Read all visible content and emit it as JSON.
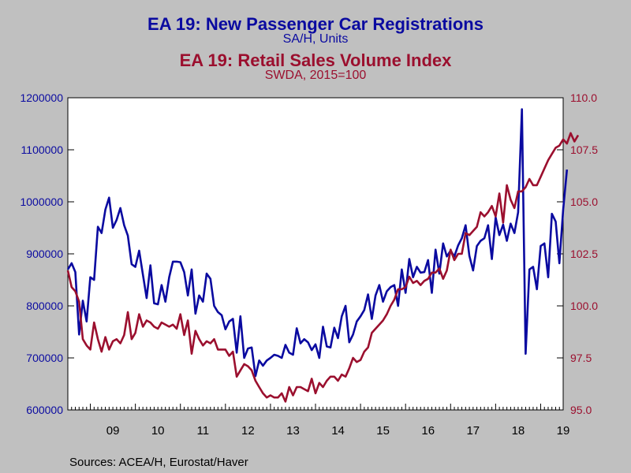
{
  "titles": {
    "title1": "EA 19: New Passenger Car Registrations",
    "subtitle1": "SA/H, Units",
    "title2": "EA 19: Retail Sales Volume Index",
    "subtitle2": "SWDA, 2015=100"
  },
  "source": "Sources:  ACEA/H, Eurostat/Haver",
  "colors": {
    "blue": "#0a0aa0",
    "red": "#9b0f2e",
    "plot_bg": "#ffffff",
    "page_bg": "#c0c0c0"
  },
  "chart_data": {
    "type": "line",
    "x_range": [
      2008.5,
      2019.5
    ],
    "x_tick_labels": [
      "09",
      "10",
      "11",
      "12",
      "13",
      "14",
      "15",
      "16",
      "17",
      "18",
      "19"
    ],
    "left_axis": {
      "ylim": [
        600000,
        1200000
      ],
      "ticks": [
        "600000",
        "700000",
        "800000",
        "900000",
        "1000000",
        "1100000",
        "1200000"
      ]
    },
    "right_axis": {
      "ylim": [
        95.0,
        110.0
      ],
      "ticks": [
        "95.0",
        "97.5",
        "100.0",
        "102.5",
        "105.0",
        "107.5",
        "110.0"
      ]
    },
    "grid": false,
    "series": [
      {
        "name": "EA 19: New Passenger Car Registrations",
        "axis": "left",
        "color": "#0a0aa0",
        "start": 2008.5,
        "step": 0.0833333,
        "values": [
          870000,
          882000,
          865000,
          745000,
          810000,
          770000,
          855000,
          850000,
          952000,
          940000,
          985000,
          1008000,
          950000,
          965000,
          988000,
          955000,
          935000,
          880000,
          875000,
          906000,
          860000,
          815000,
          878000,
          805000,
          803000,
          840000,
          808000,
          855000,
          885000,
          885000,
          884000,
          865000,
          820000,
          870000,
          785000,
          820000,
          808000,
          862000,
          852000,
          800000,
          788000,
          782000,
          755000,
          770000,
          775000,
          710000,
          780000,
          700000,
          718000,
          720000,
          665000,
          695000,
          685000,
          695000,
          700000,
          706000,
          704000,
          700000,
          725000,
          710000,
          706000,
          757000,
          728000,
          736000,
          730000,
          715000,
          726000,
          700000,
          760000,
          722000,
          720000,
          758000,
          738000,
          780000,
          800000,
          730000,
          745000,
          770000,
          780000,
          792000,
          822000,
          775000,
          820000,
          840000,
          808000,
          828000,
          836000,
          840000,
          800000,
          870000,
          825000,
          890000,
          855000,
          875000,
          864000,
          865000,
          888000,
          825000,
          908000,
          862000,
          920000,
          895000,
          906000,
          895000,
          916000,
          930000,
          955000,
          896000,
          868000,
          915000,
          925000,
          930000,
          955000,
          890000,
          970000,
          936000,
          956000,
          925000,
          958000,
          940000,
          980000,
          1178000,
          708000,
          870000,
          875000,
          832000,
          915000,
          920000,
          855000,
          977000,
          962000,
          882000,
          985000,
          1062000
        ]
      },
      {
        "name": "EA 19: Retail Sales Volume Index",
        "axis": "right",
        "color": "#9b0f2e",
        "start": 2008.5,
        "step": 0.0833333,
        "values": [
          101.7,
          100.9,
          100.7,
          100.2,
          98.4,
          98.1,
          97.9,
          99.2,
          98.4,
          97.8,
          98.5,
          97.9,
          98.3,
          98.4,
          98.2,
          98.6,
          99.7,
          98.4,
          98.7,
          99.6,
          99.0,
          99.3,
          99.2,
          99.0,
          98.9,
          99.2,
          99.1,
          99.0,
          99.1,
          98.9,
          99.6,
          98.6,
          99.3,
          97.7,
          98.8,
          98.4,
          98.1,
          98.3,
          98.2,
          98.4,
          97.9,
          97.9,
          97.9,
          97.6,
          97.8,
          96.6,
          96.9,
          97.2,
          97.1,
          96.9,
          96.4,
          96.1,
          95.8,
          95.6,
          95.7,
          95.6,
          95.6,
          95.8,
          95.4,
          96.1,
          95.7,
          96.1,
          96.1,
          96.0,
          95.9,
          96.5,
          95.8,
          96.3,
          96.1,
          96.4,
          96.6,
          96.6,
          96.4,
          96.7,
          96.6,
          97.0,
          97.5,
          97.3,
          97.4,
          97.8,
          98.0,
          98.7,
          98.9,
          99.1,
          99.3,
          99.6,
          100.0,
          100.3,
          100.8,
          100.8,
          100.9,
          101.4,
          101.1,
          101.2,
          101.0,
          101.2,
          101.3,
          101.6,
          101.6,
          101.8,
          101.3,
          101.7,
          102.7,
          102.2,
          102.5,
          102.5,
          103.5,
          103.4,
          103.6,
          103.8,
          104.5,
          104.3,
          104.5,
          104.8,
          104.3,
          105.4,
          104.0,
          105.8,
          105.1,
          104.7,
          105.5,
          105.5,
          105.7,
          106.1,
          105.8,
          105.8,
          106.2,
          106.6,
          107.0,
          107.3,
          107.6,
          107.7,
          108.0,
          107.8,
          108.3,
          107.9,
          108.2
        ]
      }
    ]
  }
}
